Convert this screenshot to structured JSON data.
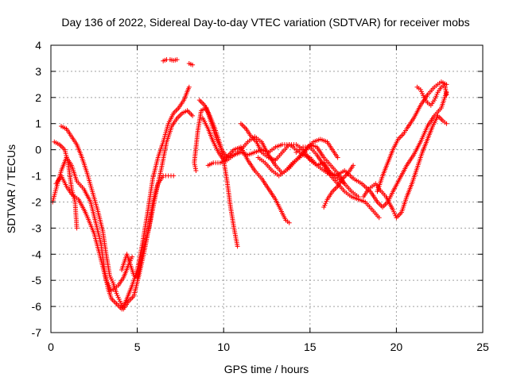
{
  "chart_data": {
    "type": "scatter",
    "title": "Day 136 of 2022, Sidereal Day-to-day VTEC variation (SDTVAR) for receiver mobs",
    "xlabel": "GPS time / hours",
    "ylabel": "SDTVAR / TECUs",
    "xlim": [
      0,
      25
    ],
    "ylim": [
      -7,
      4
    ],
    "xticks": [
      "0",
      "5",
      "10",
      "15",
      "20",
      "25"
    ],
    "yticks": [
      "-7",
      "-6",
      "-5",
      "-4",
      "-3",
      "-2",
      "-1",
      "0",
      "1",
      "2",
      "3",
      "4"
    ],
    "grid": true,
    "marker": "+",
    "color": "#ff0000",
    "series": [
      {
        "points": [
          [
            0.1,
            -2.0
          ],
          [
            0.3,
            -1.5
          ],
          [
            0.6,
            -0.8
          ],
          [
            0.9,
            -0.3
          ],
          [
            1.2,
            -0.6
          ],
          [
            1.5,
            -1.2
          ],
          [
            1.9,
            -1.5
          ],
          [
            2.3,
            -2.0
          ],
          [
            2.6,
            -2.8
          ],
          [
            2.9,
            -3.6
          ],
          [
            3.1,
            -4.6
          ],
          [
            3.3,
            -5.3
          ],
          [
            3.5,
            -5.7
          ],
          [
            3.8,
            -5.9
          ],
          [
            4.1,
            -6.1
          ],
          [
            4.4,
            -5.7
          ],
          [
            4.7,
            -5.2
          ],
          [
            5.0,
            -4.6
          ],
          [
            5.3,
            -3.6
          ],
          [
            5.6,
            -2.4
          ],
          [
            5.9,
            -1.1
          ],
          [
            6.2,
            -0.3
          ],
          [
            6.5,
            0.3
          ],
          [
            6.8,
            1.0
          ],
          [
            7.1,
            1.4
          ],
          [
            7.4,
            1.6
          ],
          [
            7.7,
            1.9
          ],
          [
            8.0,
            2.4
          ]
        ]
      },
      {
        "points": [
          [
            0.2,
            0.3
          ],
          [
            0.5,
            0.2
          ],
          [
            0.8,
            0.0
          ],
          [
            1.0,
            -0.5
          ],
          [
            1.2,
            -1.5
          ],
          [
            1.4,
            -2.0
          ],
          [
            1.5,
            -3.0
          ]
        ]
      },
      {
        "points": [
          [
            0.6,
            0.9
          ],
          [
            0.9,
            0.8
          ],
          [
            1.2,
            0.5
          ],
          [
            1.5,
            0.2
          ],
          [
            1.8,
            -0.3
          ],
          [
            2.1,
            -0.9
          ],
          [
            2.4,
            -1.6
          ],
          [
            2.7,
            -2.3
          ],
          [
            3.0,
            -3.1
          ],
          [
            3.2,
            -4.0
          ],
          [
            3.4,
            -4.8
          ],
          [
            3.6,
            -5.1
          ],
          [
            3.8,
            -5.5
          ],
          [
            4.0,
            -5.8
          ],
          [
            4.2,
            -6.1
          ],
          [
            4.5,
            -5.8
          ],
          [
            4.8,
            -5.6
          ],
          [
            5.1,
            -4.8
          ],
          [
            5.4,
            -3.9
          ],
          [
            5.7,
            -2.9
          ],
          [
            5.9,
            -2.0
          ],
          [
            6.2,
            -1.3
          ],
          [
            6.5,
            -1.0
          ],
          [
            6.8,
            -1.0
          ],
          [
            7.1,
            -1.0
          ]
        ]
      },
      {
        "points": [
          [
            0.3,
            -1.3
          ],
          [
            0.6,
            -1.0
          ],
          [
            0.9,
            -1.4
          ],
          [
            1.2,
            -1.7
          ],
          [
            1.6,
            -1.9
          ],
          [
            2.0,
            -2.4
          ],
          [
            2.5,
            -3.2
          ],
          [
            2.9,
            -4.2
          ],
          [
            3.2,
            -5.0
          ],
          [
            3.5,
            -5.4
          ],
          [
            3.9,
            -5.2
          ],
          [
            4.2,
            -4.9
          ],
          [
            4.5,
            -4.4
          ],
          [
            4.7,
            -4.1
          ]
        ]
      },
      {
        "points": [
          [
            4.1,
            -4.6
          ],
          [
            4.4,
            -4.0
          ],
          [
            4.8,
            -4.8
          ],
          [
            5.0,
            -4.9
          ],
          [
            5.2,
            -4.3
          ],
          [
            5.5,
            -3.5
          ],
          [
            5.8,
            -2.6
          ],
          [
            6.1,
            -1.6
          ],
          [
            6.4,
            -0.7
          ],
          [
            6.7,
            0.3
          ],
          [
            7.0,
            0.9
          ],
          [
            7.3,
            1.2
          ],
          [
            7.6,
            1.4
          ],
          [
            7.9,
            1.5
          ],
          [
            8.2,
            1.3
          ]
        ]
      },
      {
        "points": [
          [
            6.5,
            3.4
          ],
          [
            6.7,
            3.45
          ],
          [
            6.9,
            3.45
          ],
          [
            7.1,
            3.42
          ],
          [
            7.3,
            3.45
          ]
        ]
      },
      {
        "points": [
          [
            8.0,
            3.3
          ],
          [
            8.2,
            3.25
          ]
        ]
      },
      {
        "points": [
          [
            8.4,
            -0.8
          ],
          [
            8.3,
            -0.5
          ],
          [
            8.5,
            0.7
          ],
          [
            8.7,
            1.5
          ],
          [
            9.0,
            1.6
          ],
          [
            9.3,
            1.0
          ],
          [
            9.6,
            0.4
          ],
          [
            9.9,
            0.0
          ],
          [
            10.2,
            -0.3
          ],
          [
            10.6,
            -0.2
          ],
          [
            11.0,
            -0.1
          ],
          [
            11.4,
            -0.2
          ],
          [
            11.8,
            -0.1
          ],
          [
            12.2,
            0.0
          ],
          [
            12.6,
            -0.1
          ],
          [
            13.0,
            0.1
          ],
          [
            13.4,
            0.2
          ],
          [
            13.8,
            0.2
          ],
          [
            14.2,
            0.0
          ],
          [
            14.6,
            -0.2
          ],
          [
            15.0,
            -0.3
          ],
          [
            15.4,
            -0.6
          ],
          [
            15.8,
            -0.8
          ],
          [
            16.2,
            -0.9
          ],
          [
            16.6,
            -1.0
          ]
        ]
      },
      {
        "points": [
          [
            8.6,
            1.9
          ],
          [
            8.9,
            1.7
          ],
          [
            9.2,
            1.3
          ],
          [
            9.5,
            0.8
          ],
          [
            9.8,
            0.2
          ],
          [
            10.0,
            -0.4
          ],
          [
            10.2,
            -1.2
          ],
          [
            10.4,
            -2.2
          ],
          [
            10.6,
            -3.0
          ],
          [
            10.8,
            -3.7
          ]
        ]
      },
      {
        "points": [
          [
            8.8,
            1.2
          ],
          [
            9.1,
            0.8
          ],
          [
            9.4,
            0.3
          ],
          [
            9.7,
            -0.1
          ],
          [
            10.0,
            -0.4
          ],
          [
            10.3,
            -0.2
          ],
          [
            10.6,
            0.0
          ],
          [
            11.0,
            0.1
          ],
          [
            11.4,
            -0.4
          ],
          [
            11.8,
            -0.8
          ],
          [
            12.2,
            -1.1
          ],
          [
            12.6,
            -1.5
          ],
          [
            13.0,
            -1.9
          ],
          [
            13.3,
            -2.3
          ],
          [
            13.6,
            -2.7
          ],
          [
            13.8,
            -2.8
          ]
        ]
      },
      {
        "points": [
          [
            9.1,
            -0.6
          ],
          [
            9.4,
            -0.5
          ],
          [
            9.8,
            -0.5
          ],
          [
            10.2,
            -0.4
          ],
          [
            10.6,
            -0.2
          ],
          [
            11.0,
            0.0
          ],
          [
            11.4,
            0.3
          ],
          [
            11.8,
            0.5
          ],
          [
            12.2,
            0.3
          ],
          [
            12.6,
            -0.2
          ],
          [
            13.0,
            -0.6
          ],
          [
            13.4,
            -0.9
          ],
          [
            13.8,
            -0.7
          ],
          [
            14.2,
            -0.4
          ],
          [
            14.6,
            -0.1
          ],
          [
            15.0,
            0.2
          ],
          [
            15.4,
            0.1
          ],
          [
            15.8,
            -0.3
          ],
          [
            16.2,
            -0.6
          ],
          [
            16.6,
            -0.9
          ],
          [
            17.0,
            -1.3
          ],
          [
            17.4,
            -1.6
          ],
          [
            17.8,
            -1.8
          ]
        ]
      },
      {
        "points": [
          [
            11.0,
            1.0
          ],
          [
            11.3,
            0.8
          ],
          [
            11.6,
            0.5
          ],
          [
            11.9,
            0.3
          ],
          [
            12.2,
            -0.1
          ],
          [
            12.6,
            -0.3
          ],
          [
            13.0,
            -0.4
          ],
          [
            13.4,
            -0.1
          ],
          [
            13.8,
            0.2
          ],
          [
            14.2,
            0.2
          ],
          [
            14.6,
            0.0
          ],
          [
            15.0,
            -0.4
          ],
          [
            15.4,
            -0.6
          ],
          [
            15.8,
            -0.5
          ],
          [
            16.2,
            -0.9
          ],
          [
            16.6,
            -1.1
          ],
          [
            17.0,
            -1.3
          ]
        ]
      },
      {
        "points": [
          [
            12.0,
            -0.3
          ],
          [
            12.4,
            -0.5
          ],
          [
            12.8,
            -0.8
          ],
          [
            13.2,
            -1.0
          ],
          [
            13.6,
            -0.8
          ],
          [
            14.0,
            -0.5
          ],
          [
            14.4,
            -0.3
          ],
          [
            14.8,
            0.0
          ],
          [
            15.2,
            0.3
          ],
          [
            15.6,
            0.4
          ],
          [
            16.0,
            0.3
          ],
          [
            16.3,
            0.0
          ],
          [
            16.6,
            -0.3
          ]
        ]
      },
      {
        "points": [
          [
            14.2,
            -0.1
          ],
          [
            14.6,
            0.1
          ],
          [
            15.0,
            0.1
          ],
          [
            15.4,
            -0.2
          ],
          [
            15.8,
            -0.6
          ],
          [
            16.2,
            -1.0
          ],
          [
            16.6,
            -1.3
          ],
          [
            17.0,
            -1.6
          ],
          [
            17.4,
            -1.8
          ],
          [
            17.8,
            -1.9
          ],
          [
            18.2,
            -2.0
          ],
          [
            18.6,
            -2.3
          ],
          [
            19.0,
            -2.6
          ]
        ]
      },
      {
        "points": [
          [
            15.8,
            -2.2
          ],
          [
            16.0,
            -1.9
          ],
          [
            16.3,
            -1.6
          ],
          [
            16.6,
            -1.4
          ],
          [
            16.9,
            -1.1
          ],
          [
            17.2,
            -0.9
          ],
          [
            17.5,
            -0.6
          ]
        ]
      },
      {
        "points": [
          [
            16.0,
            -0.9
          ],
          [
            16.5,
            -1.0
          ],
          [
            17.0,
            -0.8
          ],
          [
            17.5,
            -1.1
          ],
          [
            18.0,
            -1.3
          ],
          [
            18.5,
            -1.6
          ],
          [
            18.9,
            -2.0
          ],
          [
            19.2,
            -2.2
          ],
          [
            19.5,
            -2.0
          ],
          [
            19.8,
            -1.6
          ],
          [
            20.2,
            -1.1
          ],
          [
            20.6,
            -0.6
          ],
          [
            21.0,
            -0.2
          ],
          [
            21.4,
            0.3
          ],
          [
            21.8,
            0.9
          ],
          [
            22.2,
            1.3
          ],
          [
            22.6,
            1.6
          ],
          [
            22.9,
            2.2
          ]
        ]
      },
      {
        "points": [
          [
            18.1,
            -1.8
          ],
          [
            18.4,
            -1.5
          ],
          [
            18.8,
            -1.3
          ],
          [
            19.0,
            -1.5
          ],
          [
            19.4,
            -1.8
          ],
          [
            19.8,
            -2.3
          ],
          [
            20.0,
            -2.6
          ],
          [
            20.3,
            -2.4
          ],
          [
            20.6,
            -1.8
          ],
          [
            20.9,
            -1.3
          ],
          [
            21.2,
            -0.7
          ],
          [
            21.5,
            -0.1
          ],
          [
            21.8,
            0.4
          ],
          [
            22.1,
            0.9
          ],
          [
            22.4,
            1.3
          ],
          [
            22.7,
            1.1
          ],
          [
            22.9,
            1.0
          ]
        ]
      },
      {
        "points": [
          [
            18.9,
            -1.6
          ],
          [
            19.2,
            -1.0
          ],
          [
            19.5,
            -0.5
          ],
          [
            19.8,
            0.0
          ],
          [
            20.1,
            0.4
          ],
          [
            20.4,
            0.6
          ],
          [
            20.6,
            0.8
          ],
          [
            21.0,
            1.2
          ],
          [
            21.4,
            1.7
          ],
          [
            21.8,
            2.1
          ],
          [
            22.2,
            2.4
          ],
          [
            22.6,
            2.6
          ],
          [
            22.9,
            2.5
          ]
        ]
      },
      {
        "points": [
          [
            21.2,
            2.4
          ],
          [
            21.4,
            2.3
          ],
          [
            21.6,
            2.0
          ],
          [
            21.8,
            1.8
          ],
          [
            22.0,
            1.7
          ],
          [
            22.2,
            1.9
          ],
          [
            22.4,
            2.2
          ],
          [
            22.6,
            2.4
          ],
          [
            22.8,
            2.5
          ],
          [
            22.9,
            2.1
          ]
        ]
      }
    ]
  }
}
